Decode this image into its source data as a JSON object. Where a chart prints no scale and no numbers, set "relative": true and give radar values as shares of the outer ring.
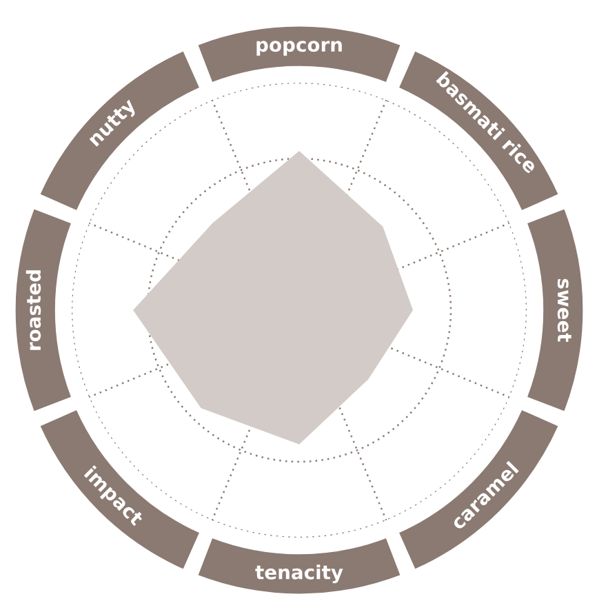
{
  "chart_data": {
    "type": "radar",
    "relative": true,
    "grid": true,
    "categories": [
      "popcorn",
      "basmati rice",
      "sweet",
      "caramel",
      "tenacity",
      "impact",
      "roasted",
      "nutty"
    ],
    "series": [
      {
        "color": "#d3cbc8",
        "values": [
          0.7,
          0.52,
          0.5,
          0.43,
          0.59,
          0.61,
          0.73,
          0.54
        ]
      }
    ]
  }
}
